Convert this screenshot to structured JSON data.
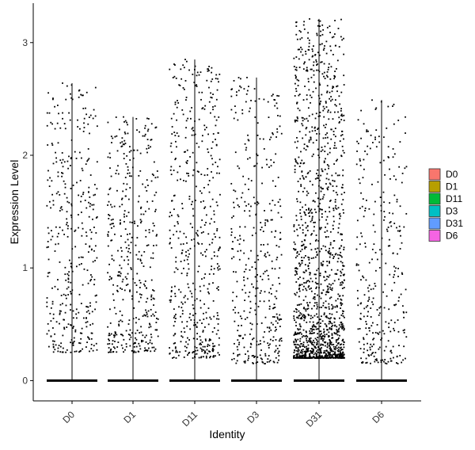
{
  "chart_data": {
    "type": "scatter",
    "subtype": "violin-jitter",
    "title": "",
    "xlabel": "Identity",
    "ylabel": "Expression Level",
    "ylim": [
      -0.18,
      3.35
    ],
    "yticks": [
      0,
      1,
      2,
      3
    ],
    "ytick_labels": [
      "0",
      "1",
      "2",
      "3"
    ],
    "grid": false,
    "legend_position": "right",
    "categories": [
      "D0",
      "D1",
      "D11",
      "D3",
      "D31",
      "D6"
    ],
    "colors": [
      "#F8766D",
      "#B79F00",
      "#00BA38",
      "#00BFC4",
      "#619CFF",
      "#F564E3"
    ],
    "series": [
      {
        "name": "D0",
        "max": 2.64,
        "nonzero_points": 380,
        "value_range": [
          0.25,
          2.64
        ]
      },
      {
        "name": "D1",
        "max": 2.34,
        "nonzero_points": 420,
        "value_range": [
          0.25,
          2.34
        ]
      },
      {
        "name": "D11",
        "max": 2.85,
        "nonzero_points": 500,
        "value_range": [
          0.2,
          2.85
        ]
      },
      {
        "name": "D3",
        "max": 2.69,
        "nonzero_points": 390,
        "value_range": [
          0.15,
          2.69
        ]
      },
      {
        "name": "D31",
        "max": 3.21,
        "nonzero_points": 1450,
        "value_range": [
          0.2,
          3.21
        ]
      },
      {
        "name": "D6",
        "max": 2.49,
        "nonzero_points": 310,
        "value_range": [
          0.15,
          2.49
        ]
      }
    ],
    "legend": {
      "entries": [
        "D0",
        "D1",
        "D11",
        "D3",
        "D31",
        "D6"
      ]
    }
  }
}
